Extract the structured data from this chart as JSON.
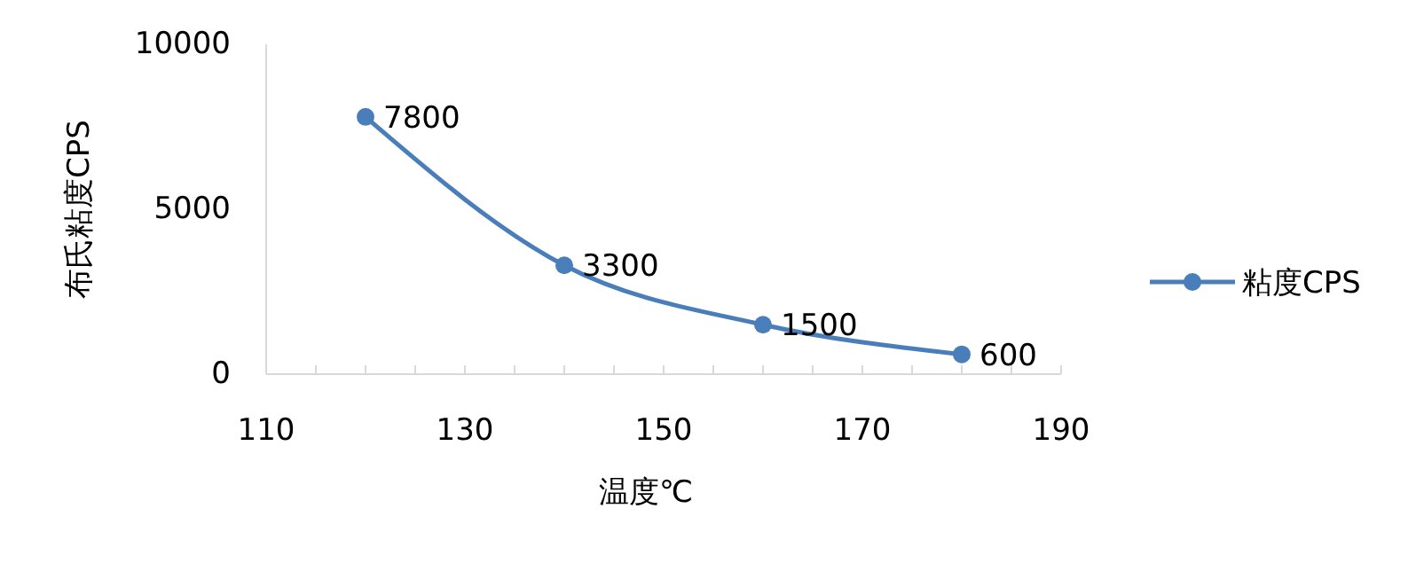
{
  "chart_data": {
    "type": "line",
    "xlabel": "温度℃",
    "ylabel": "布氏粘度CPS",
    "x": [
      120,
      140,
      160,
      180
    ],
    "series": [
      {
        "name": "粘度CPS",
        "color": "#4a7ebb",
        "values": [
          7800,
          3300,
          1500,
          600
        ]
      }
    ],
    "xlim": [
      110,
      190
    ],
    "xticks": [
      110,
      {
        "value": 115,
        "label": null
      },
      {
        "value": 120,
        "label": null
      },
      {
        "value": 125,
        "label": null
      },
      130,
      {
        "value": 135,
        "label": null
      },
      {
        "value": 140,
        "label": null
      },
      {
        "value": 145,
        "label": null
      },
      150,
      {
        "value": 155,
        "label": null
      },
      {
        "value": 160,
        "label": null
      },
      {
        "value": 165,
        "label": null
      },
      170,
      {
        "value": 175,
        "label": null
      },
      {
        "value": 180,
        "label": null
      },
      {
        "value": 185,
        "label": null
      },
      190
    ],
    "ylim": [
      0,
      10000
    ],
    "yticks": [
      0,
      5000,
      10000
    ],
    "grid": false,
    "legend": "right",
    "marker": "circle",
    "line_style": "solid",
    "data_labels": true
  }
}
